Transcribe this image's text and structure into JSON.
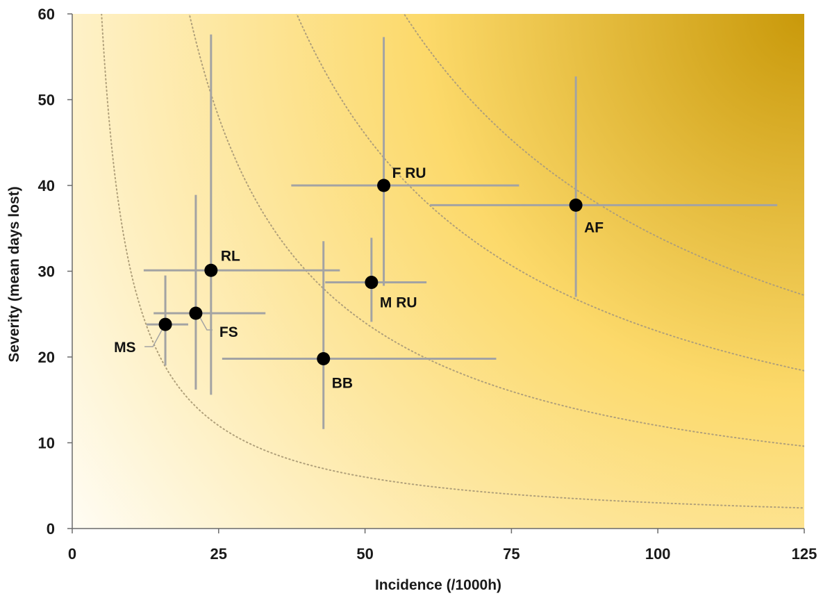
{
  "chart_data": {
    "type": "scatter",
    "title": "",
    "xlabel": "Incidence (/1000h)",
    "ylabel": "Severity (mean days lost)",
    "xlim": [
      0,
      125
    ],
    "ylim": [
      0,
      60
    ],
    "x_ticks": [
      "0",
      "25",
      "50",
      "75",
      "100",
      "125"
    ],
    "y_ticks": [
      "0",
      "10",
      "20",
      "30",
      "40",
      "50",
      "60"
    ],
    "grid": false,
    "background": "gradient-white-to-gold",
    "colors": {
      "gradient_light": "#fffdf6",
      "gradient_mid": "#fcd96a",
      "gradient_dark": "#c9990a",
      "error_bar": "#a3a3a3",
      "curve": "#b0a07a",
      "point": "#000000"
    },
    "iso_burden_curves": [
      300,
      1200,
      2300,
      3400
    ],
    "points": [
      {
        "label": "MS",
        "x": 15.9,
        "y": 23.8,
        "x_low": 12.7,
        "x_high": 19.8,
        "y_low": 19.0,
        "y_high": 29.5
      },
      {
        "label": "FS",
        "x": 21.1,
        "y": 25.1,
        "x_low": 13.9,
        "x_high": 33.0,
        "y_low": 16.2,
        "y_high": 38.9
      },
      {
        "label": "RL",
        "x": 23.7,
        "y": 30.1,
        "x_low": 12.2,
        "x_high": 45.7,
        "y_low": 15.6,
        "y_high": 57.6
      },
      {
        "label": "BB",
        "x": 42.9,
        "y": 19.8,
        "x_low": 25.6,
        "x_high": 72.4,
        "y_low": 11.6,
        "y_high": 33.5
      },
      {
        "label": "M RU",
        "x": 51.1,
        "y": 28.7,
        "x_low": 43.2,
        "x_high": 60.5,
        "y_low": 24.1,
        "y_high": 33.9
      },
      {
        "label": "F RU",
        "x": 53.2,
        "y": 40.0,
        "x_low": 37.4,
        "x_high": 76.3,
        "y_low": 28.3,
        "y_high": 57.3
      },
      {
        "label": "AF",
        "x": 86.0,
        "y": 37.7,
        "x_low": 61.1,
        "x_high": 120.4,
        "y_low": 27.0,
        "y_high": 52.7
      }
    ]
  }
}
